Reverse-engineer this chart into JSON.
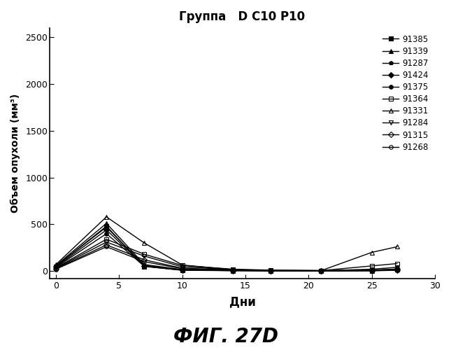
{
  "title": "Группа   D C10 P10",
  "xlabel": "Дни",
  "ylabel": "Объем опухоли (мм³)",
  "fig_label": "ФИГ. 27D",
  "xlim": [
    -0.5,
    30
  ],
  "ylim": [
    -80,
    2600
  ],
  "yticks": [
    0,
    500,
    1000,
    1500,
    2000,
    2500
  ],
  "xticks": [
    0,
    5,
    10,
    15,
    20,
    25,
    30
  ],
  "series": [
    {
      "label": "91385",
      "x": [
        0,
        4,
        7,
        10,
        14,
        17,
        21,
        25,
        27
      ],
      "y": [
        50,
        480,
        50,
        10,
        5,
        5,
        5,
        5,
        15
      ],
      "marker": "s",
      "fillstyle": "full",
      "linestyle": "-"
    },
    {
      "label": "91339",
      "x": [
        0,
        4,
        7,
        10,
        14,
        17,
        21,
        25,
        27
      ],
      "y": [
        60,
        510,
        70,
        15,
        8,
        5,
        3,
        8,
        18
      ],
      "marker": "^",
      "fillstyle": "full",
      "linestyle": "-"
    },
    {
      "label": "91287",
      "x": [
        0,
        4,
        7,
        10,
        14,
        17,
        21,
        25,
        27
      ],
      "y": [
        55,
        470,
        60,
        12,
        6,
        4,
        3,
        5,
        12
      ],
      "marker": "p",
      "fillstyle": "full",
      "linestyle": "-"
    },
    {
      "label": "91424",
      "x": [
        0,
        4,
        7,
        10,
        14,
        17,
        21,
        25,
        27
      ],
      "y": [
        45,
        440,
        55,
        10,
        5,
        3,
        2,
        4,
        10
      ],
      "marker": "D",
      "fillstyle": "full",
      "linestyle": "-"
    },
    {
      "label": "91375",
      "x": [
        0,
        4,
        7,
        10,
        14,
        17,
        21,
        25,
        27
      ],
      "y": [
        40,
        400,
        50,
        8,
        4,
        2,
        2,
        3,
        8
      ],
      "marker": "o",
      "fillstyle": "full",
      "linestyle": "-"
    },
    {
      "label": "91364",
      "x": [
        0,
        4,
        7,
        10,
        14,
        17,
        21,
        25,
        27
      ],
      "y": [
        35,
        340,
        180,
        60,
        20,
        10,
        5,
        55,
        80
      ],
      "marker": "s",
      "fillstyle": "none",
      "linestyle": "-"
    },
    {
      "label": "91331",
      "x": [
        0,
        4,
        7,
        10,
        14,
        17,
        21,
        25,
        27
      ],
      "y": [
        70,
        580,
        300,
        65,
        15,
        8,
        5,
        200,
        260
      ],
      "marker": "^",
      "fillstyle": "none",
      "linestyle": "-"
    },
    {
      "label": "91284",
      "x": [
        0,
        4,
        7,
        10,
        14,
        17,
        21,
        25,
        27
      ],
      "y": [
        30,
        310,
        160,
        45,
        15,
        5,
        3,
        20,
        40
      ],
      "marker": "v",
      "fillstyle": "none",
      "linestyle": "-"
    },
    {
      "label": "91315",
      "x": [
        0,
        4,
        7,
        10,
        14,
        17,
        21,
        25,
        27
      ],
      "y": [
        25,
        280,
        120,
        30,
        10,
        4,
        2,
        10,
        22
      ],
      "marker": "D",
      "fillstyle": "none",
      "linestyle": "-"
    },
    {
      "label": "91268",
      "x": [
        0,
        4,
        7,
        10,
        14,
        17,
        21,
        25,
        27
      ],
      "y": [
        20,
        260,
        100,
        25,
        8,
        3,
        2,
        8,
        18
      ],
      "marker": "o",
      "fillstyle": "none",
      "linestyle": "-"
    }
  ]
}
